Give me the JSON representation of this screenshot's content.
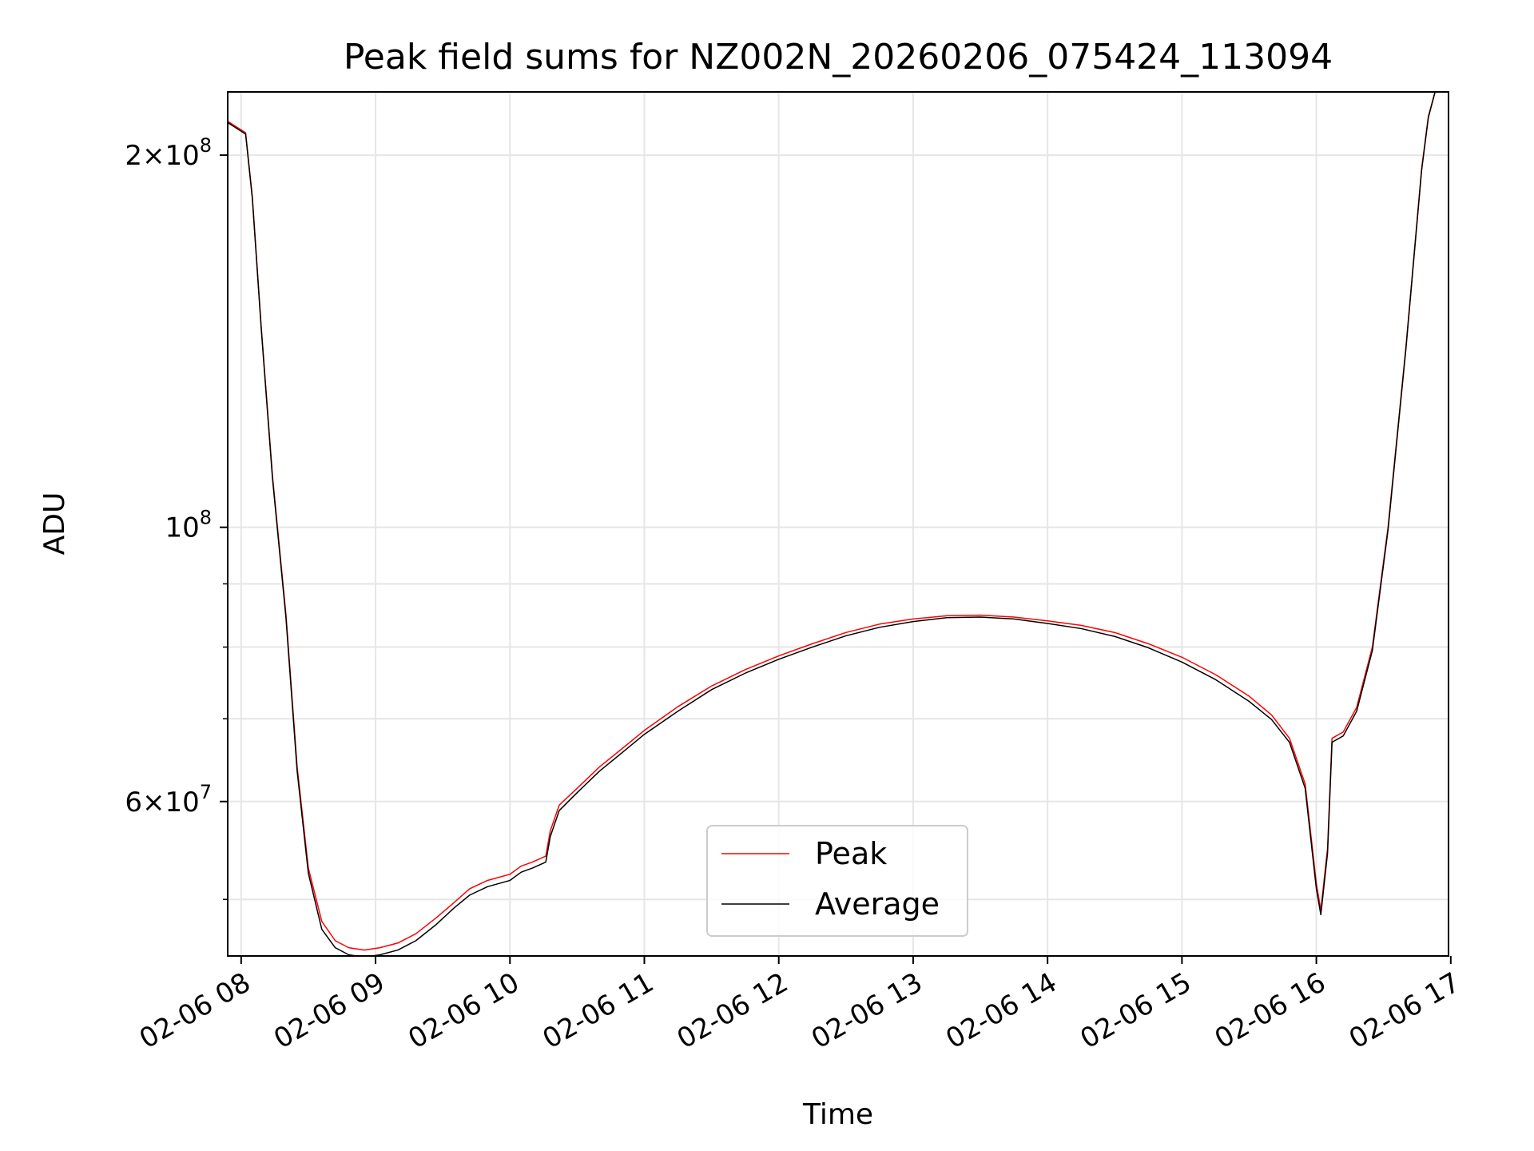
{
  "chart_data": {
    "type": "line",
    "title": "Peak field sums for NZ002N_20260206_075424_113094",
    "xlabel": "Time",
    "ylabel": "ADU",
    "x_range": [
      "2026-02-06 07:54",
      "2026-02-06 16:59"
    ],
    "ylim": [
      45000000,
      225000000
    ],
    "y_scale": "log",
    "grid": true,
    "legend_position": "lower-center",
    "x_ticks": [
      {
        "t": "2026-02-06 08:00",
        "label": "02-06 08"
      },
      {
        "t": "2026-02-06 09:00",
        "label": "02-06 09"
      },
      {
        "t": "2026-02-06 10:00",
        "label": "02-06 10"
      },
      {
        "t": "2026-02-06 11:00",
        "label": "02-06 11"
      },
      {
        "t": "2026-02-06 12:00",
        "label": "02-06 12"
      },
      {
        "t": "2026-02-06 13:00",
        "label": "02-06 13"
      },
      {
        "t": "2026-02-06 14:00",
        "label": "02-06 14"
      },
      {
        "t": "2026-02-06 15:00",
        "label": "02-06 15"
      },
      {
        "t": "2026-02-06 16:00",
        "label": "02-06 16"
      },
      {
        "t": "2026-02-06 17:00",
        "label": "02-06 17"
      }
    ],
    "y_ticks_major": [
      {
        "value": 60000000,
        "mantissa": "6",
        "base": "10",
        "exp": "7"
      },
      {
        "value": 100000000,
        "mantissa": "",
        "base": "10",
        "exp": "8"
      },
      {
        "value": 200000000,
        "mantissa": "2",
        "base": "10",
        "exp": "8"
      }
    ],
    "y_ticks_minor": [
      50000000,
      70000000,
      80000000,
      90000000
    ],
    "series": [
      {
        "name": "Peak",
        "color": "#ff0000",
        "points": [
          [
            "2026-02-06 07:54",
            213000000
          ],
          [
            "2026-02-06 08:02",
            208500000
          ],
          [
            "2026-02-06 08:05",
            185000000
          ],
          [
            "2026-02-06 08:09",
            145000000
          ],
          [
            "2026-02-06 08:14",
            110000000
          ],
          [
            "2026-02-06 08:20",
            85000000
          ],
          [
            "2026-02-06 08:25",
            64000000
          ],
          [
            "2026-02-06 08:30",
            53000000
          ],
          [
            "2026-02-06 08:36",
            48000000
          ],
          [
            "2026-02-06 08:42",
            46300000
          ],
          [
            "2026-02-06 08:48",
            45700000
          ],
          [
            "2026-02-06 08:55",
            45500000
          ],
          [
            "2026-02-06 09:02",
            45700000
          ],
          [
            "2026-02-06 09:10",
            46100000
          ],
          [
            "2026-02-06 09:18",
            46900000
          ],
          [
            "2026-02-06 09:27",
            48300000
          ],
          [
            "2026-02-06 09:35",
            49700000
          ],
          [
            "2026-02-06 09:42",
            51000000
          ],
          [
            "2026-02-06 09:50",
            51800000
          ],
          [
            "2026-02-06 10:00",
            52400000
          ],
          [
            "2026-02-06 10:05",
            53200000
          ],
          [
            "2026-02-06 10:10",
            53600000
          ],
          [
            "2026-02-06 10:16",
            54200000
          ],
          [
            "2026-02-06 10:18",
            56800000
          ],
          [
            "2026-02-06 10:22",
            59600000
          ],
          [
            "2026-02-06 10:30",
            61500000
          ],
          [
            "2026-02-06 10:40",
            64000000
          ],
          [
            "2026-02-06 10:50",
            66200000
          ],
          [
            "2026-02-06 11:00",
            68500000
          ],
          [
            "2026-02-06 11:15",
            71600000
          ],
          [
            "2026-02-06 11:30",
            74400000
          ],
          [
            "2026-02-06 11:45",
            76700000
          ],
          [
            "2026-02-06 12:00",
            78700000
          ],
          [
            "2026-02-06 12:15",
            80500000
          ],
          [
            "2026-02-06 12:30",
            82200000
          ],
          [
            "2026-02-06 12:45",
            83500000
          ],
          [
            "2026-02-06 13:00",
            84300000
          ],
          [
            "2026-02-06 13:15",
            84800000
          ],
          [
            "2026-02-06 13:30",
            84900000
          ],
          [
            "2026-02-06 13:45",
            84600000
          ],
          [
            "2026-02-06 14:00",
            84000000
          ],
          [
            "2026-02-06 14:15",
            83300000
          ],
          [
            "2026-02-06 14:30",
            82200000
          ],
          [
            "2026-02-06 14:45",
            80500000
          ],
          [
            "2026-02-06 15:00",
            78500000
          ],
          [
            "2026-02-06 15:15",
            76000000
          ],
          [
            "2026-02-06 15:30",
            73000000
          ],
          [
            "2026-02-06 15:40",
            70500000
          ],
          [
            "2026-02-06 15:48",
            67500000
          ],
          [
            "2026-02-06 15:55",
            62000000
          ],
          [
            "2026-02-06 16:00",
            51500000
          ],
          [
            "2026-02-06 16:02",
            49000000
          ],
          [
            "2026-02-06 16:05",
            55000000
          ],
          [
            "2026-02-06 16:07",
            67500000
          ],
          [
            "2026-02-06 16:12",
            68300000
          ],
          [
            "2026-02-06 16:18",
            71500000
          ],
          [
            "2026-02-06 16:25",
            80000000
          ],
          [
            "2026-02-06 16:32",
            100000000
          ],
          [
            "2026-02-06 16:40",
            140000000
          ],
          [
            "2026-02-06 16:47",
            195000000
          ],
          [
            "2026-02-06 16:50",
            215000000
          ],
          [
            "2026-02-06 16:53",
            225000000
          ],
          [
            "2026-02-06 16:59",
            225000000
          ]
        ]
      },
      {
        "name": "Average",
        "color": "#000000",
        "points": [
          [
            "2026-02-06 07:54",
            212500000
          ],
          [
            "2026-02-06 08:02",
            208000000
          ],
          [
            "2026-02-06 08:05",
            184500000
          ],
          [
            "2026-02-06 08:09",
            144500000
          ],
          [
            "2026-02-06 08:14",
            109500000
          ],
          [
            "2026-02-06 08:20",
            84500000
          ],
          [
            "2026-02-06 08:25",
            63500000
          ],
          [
            "2026-02-06 08:30",
            52500000
          ],
          [
            "2026-02-06 08:36",
            47300000
          ],
          [
            "2026-02-06 08:42",
            45700000
          ],
          [
            "2026-02-06 08:48",
            45100000
          ],
          [
            "2026-02-06 08:55",
            44900000
          ],
          [
            "2026-02-06 09:02",
            45100000
          ],
          [
            "2026-02-06 09:10",
            45500000
          ],
          [
            "2026-02-06 09:18",
            46300000
          ],
          [
            "2026-02-06 09:27",
            47700000
          ],
          [
            "2026-02-06 09:35",
            49200000
          ],
          [
            "2026-02-06 09:42",
            50400000
          ],
          [
            "2026-02-06 09:50",
            51200000
          ],
          [
            "2026-02-06 10:00",
            51800000
          ],
          [
            "2026-02-06 10:05",
            52600000
          ],
          [
            "2026-02-06 10:10",
            53000000
          ],
          [
            "2026-02-06 10:16",
            53600000
          ],
          [
            "2026-02-06 10:18",
            56200000
          ],
          [
            "2026-02-06 10:22",
            59000000
          ],
          [
            "2026-02-06 10:30",
            61000000
          ],
          [
            "2026-02-06 10:40",
            63500000
          ],
          [
            "2026-02-06 10:50",
            65700000
          ],
          [
            "2026-02-06 11:00",
            68000000
          ],
          [
            "2026-02-06 11:15",
            71000000
          ],
          [
            "2026-02-06 11:30",
            73900000
          ],
          [
            "2026-02-06 11:45",
            76200000
          ],
          [
            "2026-02-06 12:00",
            78200000
          ],
          [
            "2026-02-06 12:15",
            80000000
          ],
          [
            "2026-02-06 12:30",
            81700000
          ],
          [
            "2026-02-06 12:45",
            83000000
          ],
          [
            "2026-02-06 13:00",
            83900000
          ],
          [
            "2026-02-06 13:15",
            84500000
          ],
          [
            "2026-02-06 13:30",
            84600000
          ],
          [
            "2026-02-06 13:45",
            84300000
          ],
          [
            "2026-02-06 14:00",
            83600000
          ],
          [
            "2026-02-06 14:15",
            82800000
          ],
          [
            "2026-02-06 14:30",
            81600000
          ],
          [
            "2026-02-06 14:45",
            79900000
          ],
          [
            "2026-02-06 15:00",
            77800000
          ],
          [
            "2026-02-06 15:15",
            75300000
          ],
          [
            "2026-02-06 15:30",
            72300000
          ],
          [
            "2026-02-06 15:40",
            69900000
          ],
          [
            "2026-02-06 15:48",
            67000000
          ],
          [
            "2026-02-06 15:55",
            61500000
          ],
          [
            "2026-02-06 16:00",
            51000000
          ],
          [
            "2026-02-06 16:02",
            48600000
          ],
          [
            "2026-02-06 16:05",
            54500000
          ],
          [
            "2026-02-06 16:07",
            67000000
          ],
          [
            "2026-02-06 16:12",
            67800000
          ],
          [
            "2026-02-06 16:18",
            71000000
          ],
          [
            "2026-02-06 16:25",
            79500000
          ],
          [
            "2026-02-06 16:32",
            99500000
          ],
          [
            "2026-02-06 16:40",
            139500000
          ],
          [
            "2026-02-06 16:47",
            194500000
          ],
          [
            "2026-02-06 16:50",
            214500000
          ],
          [
            "2026-02-06 16:53",
            225000000
          ],
          [
            "2026-02-06 16:59",
            225000000
          ]
        ]
      }
    ]
  }
}
